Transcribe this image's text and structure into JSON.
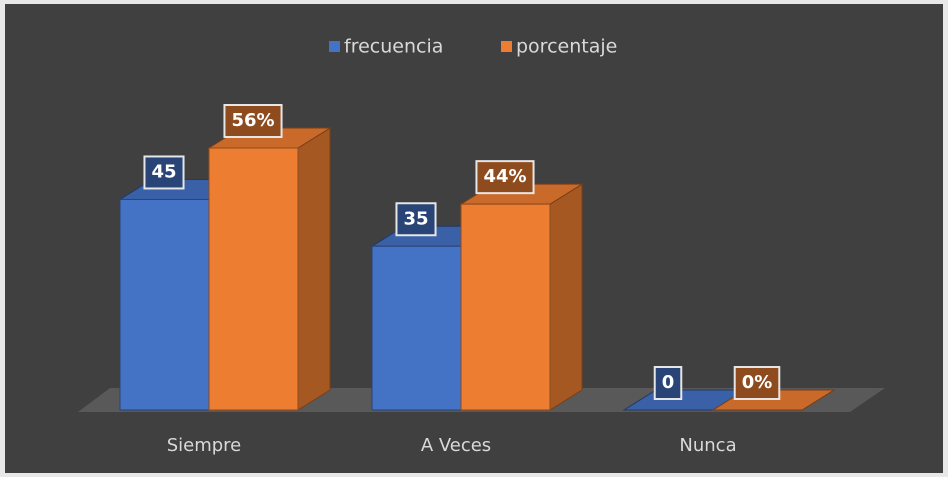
{
  "chart_data": {
    "type": "bar3d",
    "categories": [
      "Siempre",
      "A Veces",
      "Nunca"
    ],
    "series": [
      {
        "name": "frecuencia",
        "color": "#4472c4",
        "values": [
          45,
          35,
          0
        ]
      },
      {
        "name": "porcentaje",
        "color": "#ed7d31",
        "values": [
          56,
          44,
          0
        ],
        "value_labels": [
          "56%",
          "44%",
          "0%"
        ]
      }
    ],
    "legend": "top"
  }
}
